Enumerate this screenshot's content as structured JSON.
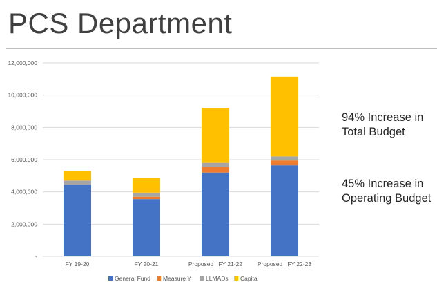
{
  "slide": {
    "title": "PCS Department",
    "notes": [
      "94% Increase in Total Budget",
      "45% Increase in Operating Budget"
    ]
  },
  "colors": {
    "general_fund": "#4472c4",
    "measure_y": "#ed7d31",
    "llmads": "#a5a5a5",
    "capital": "#ffc000",
    "grid": "#d9d9d9",
    "axis_text": "#595959"
  },
  "chart_data": {
    "type": "bar",
    "stacked": true,
    "categories": [
      "FY 19-20",
      "FY 20-21",
      "Proposed   FY 21-22",
      "Proposed   FY 22-23"
    ],
    "series": [
      {
        "name": "General Fund",
        "values": [
          4450000,
          3550000,
          5200000,
          5650000
        ]
      },
      {
        "name": "Measure Y",
        "values": [
          0,
          150000,
          350000,
          300000
        ]
      },
      {
        "name": "LLMADs",
        "values": [
          250000,
          250000,
          250000,
          250000
        ]
      },
      {
        "name": "Capital",
        "values": [
          600000,
          900000,
          3400000,
          4950000
        ]
      }
    ],
    "ylim": [
      0,
      12000000
    ],
    "y_ticks": [
      "-",
      "2,000,000",
      "4,000,000",
      "6,000,000",
      "8,000,000",
      "10,000,000",
      "12,000,000"
    ],
    "y_tick_values": [
      0,
      2000000,
      4000000,
      6000000,
      8000000,
      10000000,
      12000000
    ],
    "grid": true,
    "legend": "bottom"
  }
}
